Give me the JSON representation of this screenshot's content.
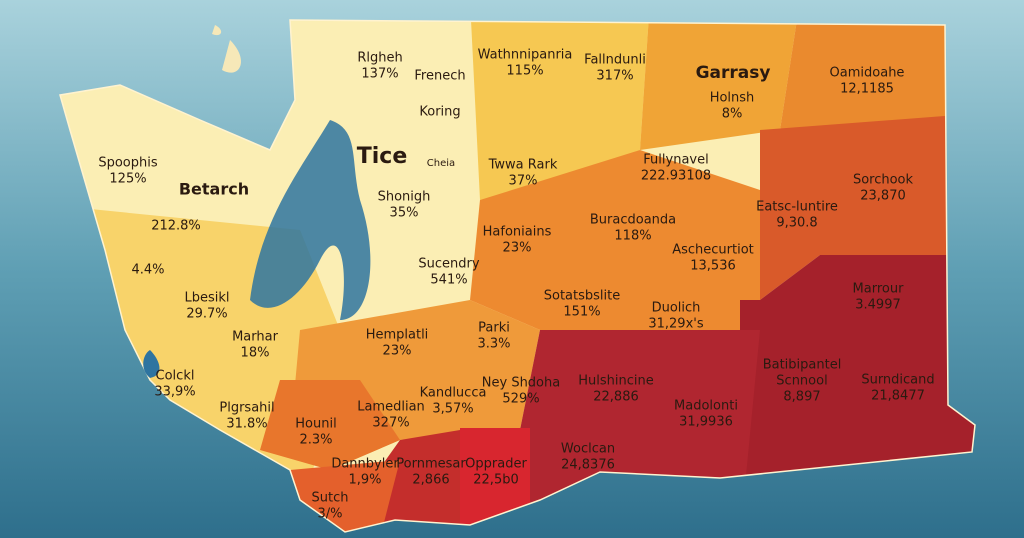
{
  "title": "Tice",
  "regions": [
    {
      "lines": [
        "Rlgheh",
        "137%"
      ]
    },
    {
      "lines": [
        "Frenech"
      ]
    },
    {
      "lines": [
        "Wathnnipanria",
        "115%"
      ]
    },
    {
      "lines": [
        "Fallndunli",
        "317%"
      ]
    },
    {
      "lines": [
        "Garrasy"
      ]
    },
    {
      "lines": [
        "Holnsh",
        "8%"
      ]
    },
    {
      "lines": [
        "Oamidoahe",
        "12,1185"
      ]
    },
    {
      "lines": [
        "Koring"
      ]
    },
    {
      "lines": [
        "Cheia"
      ]
    },
    {
      "lines": [
        "Twwa Rark",
        "37%"
      ]
    },
    {
      "lines": [
        "Fullynavel",
        "222.93108"
      ]
    },
    {
      "lines": [
        "Sorchook",
        "23,870"
      ]
    },
    {
      "lines": [
        "Spoophis",
        "125%"
      ]
    },
    {
      "lines": [
        "Betarch"
      ]
    },
    {
      "lines": [
        "Shonigh",
        "35%"
      ]
    },
    {
      "lines": [
        "Eatsc-luntire",
        "9,30.8"
      ]
    },
    {
      "lines": [
        "212.8%"
      ]
    },
    {
      "lines": [
        "Hafoniains",
        "23%"
      ]
    },
    {
      "lines": [
        "Buracdoanda",
        "118%"
      ]
    },
    {
      "lines": [
        "Aschecurtiot",
        "13,536"
      ]
    },
    {
      "lines": [
        "4.4%"
      ]
    },
    {
      "lines": [
        "Sucendry",
        "541%"
      ]
    },
    {
      "lines": [
        "Marrour",
        "3.4997"
      ]
    },
    {
      "lines": [
        "Lbesikl",
        "29.7%"
      ]
    },
    {
      "lines": [
        "Sotatsbslite",
        "151%"
      ]
    },
    {
      "lines": [
        "Duolich",
        "31,29x's"
      ]
    },
    {
      "lines": [
        "Marhar",
        "18%"
      ]
    },
    {
      "lines": [
        "Parki",
        "3.3%"
      ]
    },
    {
      "lines": [
        "Hemplatli",
        "23%"
      ]
    },
    {
      "lines": [
        "Colckl",
        "33,9%"
      ]
    },
    {
      "lines": [
        "Hulshincine",
        "22,886"
      ]
    },
    {
      "lines": [
        "Ney Shdoha",
        "529%"
      ]
    },
    {
      "lines": [
        "Batibipantel",
        "Scnnool",
        "8,897"
      ]
    },
    {
      "lines": [
        "Surndicand",
        "21,8477"
      ]
    },
    {
      "lines": [
        "Kandlucca",
        "3,57%"
      ]
    },
    {
      "lines": [
        "Plgrsahil",
        "31.8%"
      ]
    },
    {
      "lines": [
        "Lamedlian",
        "327%"
      ]
    },
    {
      "lines": [
        "Madolonti",
        "31,9936"
      ]
    },
    {
      "lines": [
        "Hounil",
        "2.3%"
      ]
    },
    {
      "lines": [
        "Woclcan",
        "24,8376"
      ]
    },
    {
      "lines": [
        "Dannbyler",
        "1,9%"
      ]
    },
    {
      "lines": [
        "Pornmesar",
        "2,866"
      ]
    },
    {
      "lines": [
        "Opprader",
        "22,5b0"
      ]
    },
    {
      "lines": [
        "Sutch",
        "3/%"
      ]
    }
  ]
}
